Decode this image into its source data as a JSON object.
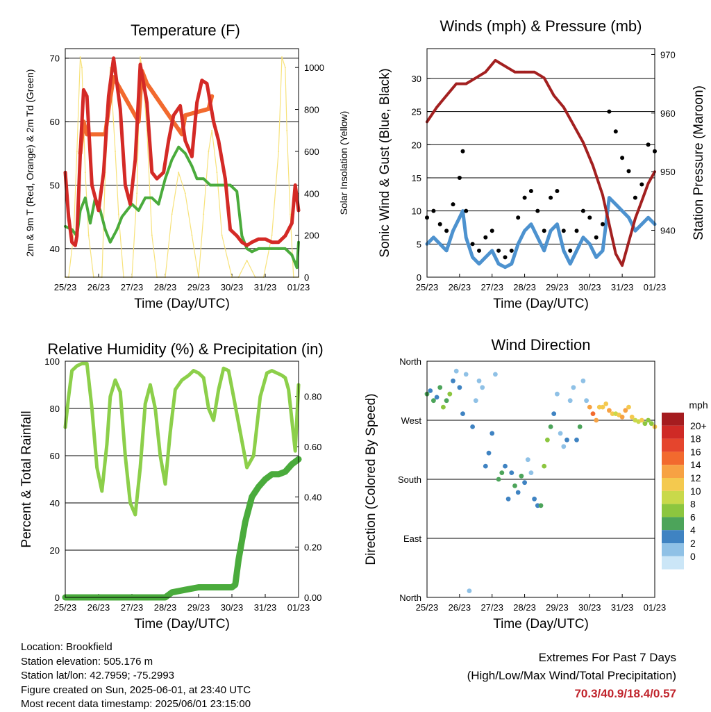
{
  "x_ticks": [
    "25/23",
    "26/23",
    "27/23",
    "28/23",
    "29/23",
    "30/23",
    "31/23",
    "01/23"
  ],
  "charts": {
    "temperature": {
      "title": "Temperature (F)",
      "xlabel": "Time (Day/UTC)",
      "ylabel_left": "2m & 9m T (Red, Orange) & 2m Td (Green)",
      "ylabel_right": "Solar Insolation (Yellow)",
      "left_ticks": [
        "40",
        "50",
        "60",
        "70"
      ],
      "right_ticks": [
        "0",
        "200",
        "400",
        "600",
        "800",
        "1000"
      ]
    },
    "winds": {
      "title": "Winds (mph) & Pressure (mb)",
      "xlabel": "Time (Day/UTC)",
      "ylabel_left": "Sonic Wind & Gust (Blue, Black)",
      "ylabel_right": "Station Pressure (Maroon)",
      "left_ticks": [
        "0",
        "5",
        "10",
        "15",
        "20",
        "25",
        "30"
      ],
      "right_ticks": [
        "940",
        "950",
        "960",
        "970"
      ]
    },
    "humidity": {
      "title": "Relative Humidity (%) & Precipitation (in)",
      "xlabel": "Time (Day/UTC)",
      "ylabel_left": "Percent & Total Rainfall",
      "left_ticks": [
        "0",
        "20",
        "40",
        "60",
        "80",
        "100"
      ],
      "right_ticks": [
        "0.00",
        "0.20",
        "0.40",
        "0.60",
        "0.80"
      ]
    },
    "wind_direction": {
      "title": "Wind Direction",
      "xlabel": "Time (Day/UTC)",
      "ylabel_left": "Direction (Colored By Speed)",
      "left_ticks": [
        "North",
        "East",
        "South",
        "West",
        "North"
      ],
      "legend_title": "mph",
      "legend_labels": [
        "20+",
        "18",
        "16",
        "14",
        "12",
        "10",
        "8",
        "6",
        "4",
        "2",
        "0"
      ],
      "legend_colors": [
        "#a51c1f",
        "#cf2a26",
        "#e5452d",
        "#f26a2e",
        "#f7a243",
        "#f4c94e",
        "#c9d94a",
        "#8cc63f",
        "#4ca45a",
        "#3f83c2",
        "#8fc1e6",
        "#cbe6f7"
      ]
    }
  },
  "chart_data": [
    {
      "type": "line",
      "title": "Temperature (F)",
      "xlabel": "Time (Day/UTC)",
      "ylabel": "2m & 9m T (Red, Orange) & 2m Td (Green)",
      "x_range": [
        0,
        7
      ],
      "ylim": [
        35.5,
        71.5
      ],
      "y2lim": [
        0,
        1090
      ],
      "series": [
        {
          "color": "#d42a26",
          "x": [
            0,
            0.1,
            0.2,
            0.3,
            0.35,
            0.45,
            0.55,
            0.65,
            0.8,
            1.0,
            1.15,
            1.3,
            1.45,
            1.65,
            1.8,
            1.95,
            2.1,
            2.25,
            2.45,
            2.6,
            2.75,
            2.95,
            3.1,
            3.25,
            3.45,
            3.6,
            3.8,
            3.95,
            4.1,
            4.25,
            4.45,
            4.6,
            4.8,
            4.95,
            5.15,
            5.3,
            5.45,
            5.6,
            5.8,
            6.0,
            6.2,
            6.4,
            6.6,
            6.8,
            6.9,
            7.0
          ],
          "y": [
            52,
            45,
            41,
            40.5,
            42,
            55,
            65,
            64,
            50,
            46,
            52,
            64,
            70,
            62,
            50,
            47,
            54,
            69,
            63,
            52,
            51,
            52,
            57,
            61,
            62.5,
            57,
            54.5,
            63,
            66.5,
            66,
            60,
            57,
            51,
            43,
            42,
            41,
            40.5,
            41,
            41.5,
            41.5,
            41,
            41,
            42,
            44,
            50,
            46
          ]
        },
        {
          "color": "#f26a2e",
          "x": [
            0.45,
            0.55,
            0.65,
            1.2,
            1.3,
            1.45,
            2.2,
            2.3,
            2.45,
            3.5,
            3.6,
            4.3,
            4.4
          ],
          "y": [
            55,
            60,
            58,
            58,
            62,
            67,
            60,
            68,
            66,
            58,
            61,
            62,
            64
          ]
        },
        {
          "color": "#4aab3c",
          "x": [
            0,
            0.2,
            0.35,
            0.45,
            0.6,
            0.75,
            0.9,
            1.05,
            1.2,
            1.35,
            1.55,
            1.7,
            1.85,
            2.0,
            2.2,
            2.4,
            2.6,
            2.8,
            3.0,
            3.2,
            3.4,
            3.6,
            3.8,
            3.95,
            4.15,
            4.35,
            4.55,
            4.75,
            4.95,
            5.15,
            5.3,
            5.45,
            5.6,
            5.8,
            6.0,
            6.2,
            6.4,
            6.6,
            6.8,
            6.95,
            7.0
          ],
          "y": [
            43.5,
            43,
            42,
            46,
            48,
            44,
            48,
            46,
            43,
            41,
            43,
            45,
            46,
            47,
            46,
            48,
            48,
            47,
            51,
            54,
            56,
            55,
            53,
            51,
            51,
            50,
            50,
            50,
            50,
            49,
            42,
            40,
            39.5,
            40,
            40,
            40,
            40,
            40,
            39,
            37,
            41
          ]
        },
        {
          "color": "#f7e27a",
          "axis": "right",
          "x": [
            0,
            0.1,
            0.25,
            0.35,
            0.45,
            0.5,
            0.6,
            0.7,
            0.85,
            1.1,
            1.2,
            1.3,
            1.35,
            1.5,
            1.6,
            1.75,
            2.0,
            2.15,
            2.25,
            2.3,
            2.45,
            2.6,
            2.75,
            3.0,
            3.2,
            3.4,
            3.6,
            3.8,
            4.0,
            4.15,
            4.3,
            4.4,
            4.55,
            4.7,
            5.0,
            5.2,
            5.45,
            5.7,
            5.95,
            6.2,
            6.4,
            6.5,
            6.6,
            6.65,
            6.75,
            6.85,
            7.0
          ],
          "y": [
            0,
            0,
            200,
            600,
            1050,
            1000,
            500,
            200,
            0,
            0,
            500,
            800,
            1000,
            600,
            300,
            0,
            0,
            400,
            1050,
            1000,
            700,
            200,
            0,
            0,
            300,
            500,
            400,
            200,
            0,
            300,
            600,
            700,
            500,
            200,
            0,
            0,
            80,
            0,
            0,
            200,
            600,
            1050,
            1000,
            700,
            300,
            0,
            0
          ]
        }
      ]
    },
    {
      "type": "line",
      "title": "Winds (mph) & Pressure (mb)",
      "xlabel": "Time (Day/UTC)",
      "ylabel": "Sonic Wind & Gust (Blue, Black)",
      "x_range": [
        0,
        7
      ],
      "ylim": [
        0,
        34.5
      ],
      "y2lim": [
        932,
        971
      ],
      "series": [
        {
          "color": "#4d92cf",
          "x": [
            0,
            0.2,
            0.4,
            0.6,
            0.8,
            1.0,
            1.1,
            1.2,
            1.4,
            1.6,
            1.8,
            2.0,
            2.2,
            2.4,
            2.6,
            2.8,
            3.0,
            3.2,
            3.4,
            3.6,
            3.8,
            4.0,
            4.2,
            4.4,
            4.6,
            4.8,
            5.0,
            5.2,
            5.4,
            5.6,
            5.8,
            6.0,
            6.2,
            6.4,
            6.6,
            6.8,
            7.0
          ],
          "y": [
            5,
            6,
            5,
            4,
            7,
            9,
            10,
            6,
            3,
            2,
            3,
            4,
            2,
            1.5,
            2,
            5,
            7,
            8,
            6,
            4,
            7,
            8,
            4,
            2,
            4,
            6,
            5,
            3,
            4,
            12,
            11,
            10,
            9,
            7,
            8,
            9,
            8
          ]
        },
        {
          "color": "#000000",
          "x": [
            0,
            0.2,
            0.4,
            0.6,
            0.8,
            1.0,
            1.1,
            1.2,
            1.4,
            1.6,
            1.8,
            2.0,
            2.2,
            2.4,
            2.6,
            2.8,
            3.0,
            3.2,
            3.4,
            3.6,
            3.8,
            4.0,
            4.2,
            4.4,
            4.6,
            4.8,
            5.0,
            5.2,
            5.4,
            5.6,
            5.8,
            6.0,
            6.2,
            6.4,
            6.6,
            6.8,
            7.0
          ],
          "y": [
            9,
            10,
            8,
            7,
            11,
            15,
            19,
            10,
            5,
            4,
            6,
            7,
            4,
            3,
            4,
            9,
            12,
            13,
            10,
            7,
            12,
            13,
            7,
            4,
            7,
            10,
            9,
            6,
            8,
            25,
            22,
            18,
            16,
            12,
            14,
            20,
            19
          ]
        },
        {
          "color": "#a32020",
          "axis": "right",
          "x": [
            0,
            0.3,
            0.6,
            0.9,
            1.2,
            1.5,
            1.8,
            2.1,
            2.4,
            2.7,
            3.0,
            3.3,
            3.6,
            3.9,
            4.2,
            4.5,
            4.8,
            5.1,
            5.4,
            5.6,
            5.8,
            6.0,
            6.2,
            6.4,
            6.6,
            6.8,
            7.0
          ],
          "y": [
            958.5,
            961,
            963,
            965,
            965,
            966,
            967,
            969,
            968,
            967,
            967,
            967,
            966,
            963,
            961,
            958,
            955,
            951,
            946,
            941,
            936,
            934,
            938,
            942,
            945,
            948,
            950
          ]
        }
      ]
    },
    {
      "type": "line",
      "title": "Relative Humidity (%) & Precipitation (in)",
      "xlabel": "Time (Day/UTC)",
      "ylabel": "Percent & Total Rainfall",
      "x_range": [
        0,
        7
      ],
      "ylim": [
        0,
        100
      ],
      "y2lim": [
        0,
        0.94
      ],
      "series": [
        {
          "color": "#8ccf4a",
          "x": [
            0,
            0.1,
            0.2,
            0.35,
            0.5,
            0.65,
            0.8,
            0.95,
            1.1,
            1.25,
            1.35,
            1.5,
            1.65,
            1.8,
            1.95,
            2.1,
            2.25,
            2.4,
            2.55,
            2.7,
            2.85,
            3.0,
            3.15,
            3.3,
            3.5,
            3.7,
            3.85,
            4.0,
            4.15,
            4.3,
            4.45,
            4.6,
            4.75,
            4.9,
            5.05,
            5.25,
            5.45,
            5.65,
            5.85,
            6.05,
            6.2,
            6.35,
            6.5,
            6.6,
            6.7,
            6.8,
            6.9,
            7.0
          ],
          "y": [
            72,
            85,
            96,
            98,
            99,
            99,
            80,
            55,
            45,
            65,
            85,
            92,
            87,
            60,
            40,
            35,
            55,
            82,
            90,
            80,
            60,
            48,
            70,
            88,
            92,
            94,
            96,
            95,
            93,
            80,
            75,
            88,
            97,
            96,
            85,
            70,
            55,
            60,
            85,
            95,
            96,
            95,
            94,
            93,
            88,
            75,
            62,
            90
          ]
        },
        {
          "color": "#4aab3c",
          "axis": "right",
          "x": [
            0,
            1.0,
            2.0,
            3.0,
            3.2,
            3.6,
            4.0,
            4.5,
            5.0,
            5.1,
            5.2,
            5.4,
            5.6,
            5.8,
            6.0,
            6.2,
            6.4,
            6.6,
            6.8,
            7.0
          ],
          "y": [
            0,
            0,
            0,
            0,
            0.02,
            0.03,
            0.04,
            0.04,
            0.04,
            0.05,
            0.15,
            0.3,
            0.4,
            0.44,
            0.47,
            0.49,
            0.49,
            0.5,
            0.53,
            0.55
          ]
        }
      ]
    },
    {
      "type": "scatter",
      "title": "Wind Direction",
      "xlabel": "Time (Day/UTC)",
      "ylabel": "Direction (Colored By Speed)",
      "x_range": [
        0,
        7
      ],
      "ylim": [
        0,
        360
      ],
      "y_tick_labels": [
        "North",
        "East",
        "South",
        "West",
        "North"
      ],
      "legend_title": "mph",
      "series": [
        {
          "x": [
            0,
            0.1,
            0.2,
            0.3,
            0.4,
            0.5,
            0.6,
            0.7,
            0.8,
            0.9,
            1.0,
            1.1,
            1.2,
            1.3,
            1.4,
            1.5,
            1.6,
            1.7,
            1.8,
            1.9,
            2.0,
            2.1,
            2.2,
            2.3,
            2.4,
            2.5,
            2.6,
            2.7,
            2.8,
            2.9,
            3.0,
            3.1,
            3.2,
            3.3,
            3.4,
            3.5,
            3.6,
            3.7,
            3.8,
            3.9,
            4.0,
            4.1,
            4.2,
            4.3,
            4.4,
            4.5,
            4.6,
            4.7,
            4.8,
            4.9,
            5.0,
            5.1,
            5.2,
            5.3,
            5.4,
            5.5,
            5.6,
            5.7,
            5.8,
            5.9,
            6.0,
            6.1,
            6.2,
            6.3,
            6.4,
            6.5,
            6.6,
            6.7,
            6.8,
            6.9,
            7.0
          ],
          "y": [
            310,
            315,
            300,
            305,
            320,
            290,
            300,
            310,
            330,
            345,
            320,
            280,
            340,
            10,
            260,
            300,
            330,
            320,
            200,
            220,
            250,
            340,
            180,
            190,
            200,
            150,
            190,
            170,
            160,
            185,
            175,
            210,
            190,
            150,
            140,
            140,
            200,
            240,
            260,
            280,
            310,
            250,
            230,
            240,
            300,
            320,
            240,
            260,
            330,
            300,
            290,
            280,
            270,
            290,
            290,
            295,
            285,
            280,
            280,
            278,
            275,
            285,
            290,
            275,
            270,
            268,
            270,
            265,
            270,
            265,
            260
          ],
          "speed": [
            6,
            5,
            7,
            5,
            6,
            8,
            6,
            9,
            4,
            3,
            4,
            5,
            3,
            2,
            5,
            3,
            2,
            3,
            4,
            4,
            5,
            2,
            6,
            7,
            4,
            5,
            4,
            6,
            5,
            7,
            4,
            3,
            3,
            4,
            5,
            6,
            8,
            9,
            7,
            5,
            3,
            2,
            2,
            4,
            3,
            2,
            5,
            6,
            2,
            3,
            14,
            16,
            14,
            13,
            12,
            12,
            14,
            13,
            10,
            13,
            14,
            15,
            13,
            12,
            11,
            10,
            12,
            9,
            8,
            9,
            12
          ]
        }
      ]
    }
  ],
  "info": {
    "location": "Location: Brookfield",
    "elevation": "Station elevation: 505.176 m",
    "latlon": "Station lat/lon: 42.7959; -75.2993",
    "created": "Figure created on Sun, 2025-06-01, at 23:40 UTC",
    "recent": "Most recent data timestamp: 2025/06/01 23:15:00"
  },
  "extremes": {
    "line1": "Extremes For Past 7 Days",
    "line2": "(High/Low/Max Wind/Total Precipitation)",
    "values": "70.3/40.9/18.4/0.57"
  }
}
